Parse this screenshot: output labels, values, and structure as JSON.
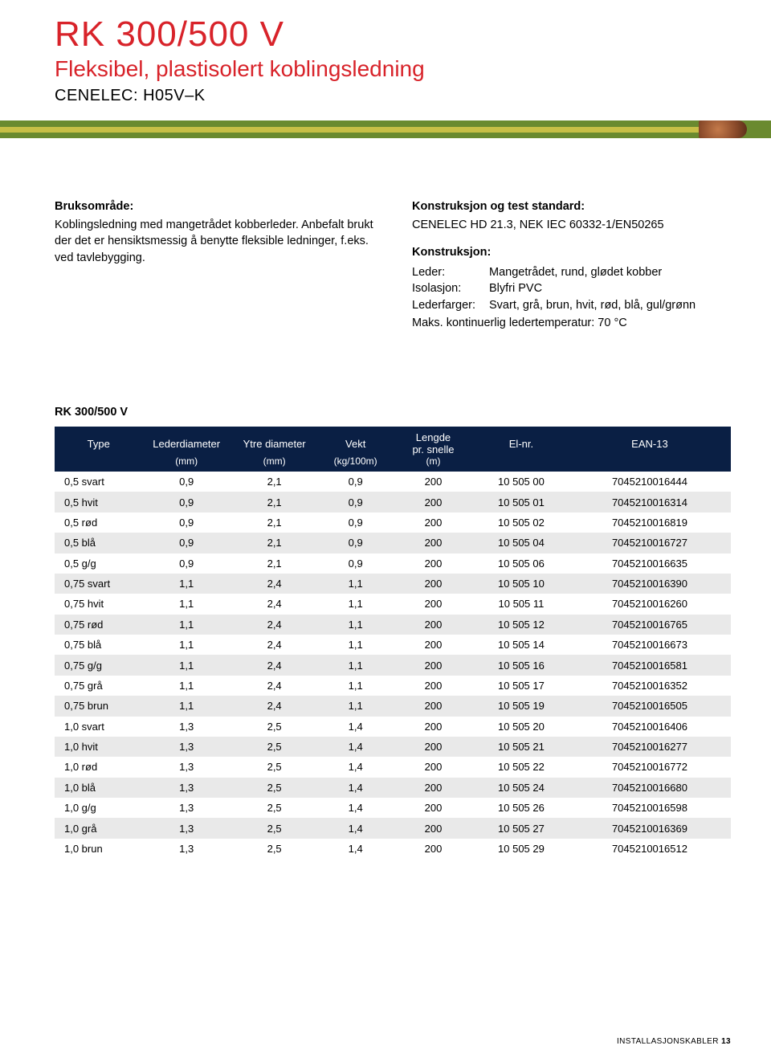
{
  "colors": {
    "brand_red": "#d8232a",
    "text": "#000000",
    "header_navy": "#0a1f44",
    "row_alt": "#e9e9e9",
    "white": "#ffffff"
  },
  "header": {
    "title": "RK 300/500 V",
    "subtitle": "Fleksibel, plastisolert koblingsledning",
    "cenelec": "CENELEC: H05V–K"
  },
  "left": {
    "head": "Bruksområde:",
    "body": "Koblingsledning med mangetrådet kobberleder. Anbefalt brukt der det er hensiktsmessig å benytte fleksible ledninger, f.eks. ved tavlebygging."
  },
  "right": {
    "head": "Konstruksjon og test standard:",
    "std": "CENELEC HD 21.3, NEK IEC 60332-1/EN50265",
    "k_head": "Konstruksjon:",
    "defs": [
      {
        "k": "Leder:",
        "v": "Mangetrådet, rund, glødet kobber"
      },
      {
        "k": "Isolasjon:",
        "v": "Blyfri PVC"
      },
      {
        "k": "Lederfarger:",
        "v": "Svart, grå, brun, hvit, rød, blå, gul/grønn"
      }
    ],
    "maks": "Maks. kontinuerlig ledertemperatur: 70 °C"
  },
  "table": {
    "title": "RK 300/500 V",
    "columns": [
      "Type",
      "Lederdiameter",
      "Ytre diameter",
      "Vekt",
      "Lengde pr. snelle",
      "El-nr.",
      "EAN-13"
    ],
    "units": [
      "",
      "(mm)",
      "(mm)",
      "(kg/100m)",
      "(m)",
      "",
      ""
    ],
    "col_widths_pct": [
      13,
      13,
      13,
      11,
      12,
      14,
      24
    ],
    "header_bg": "#0a1f44",
    "row_alt_bg": "#e9e9e9",
    "rows": [
      [
        "0,5 svart",
        "0,9",
        "2,1",
        "0,9",
        "200",
        "10 505 00",
        "7045210016444"
      ],
      [
        "0,5 hvit",
        "0,9",
        "2,1",
        "0,9",
        "200",
        "10 505 01",
        "7045210016314"
      ],
      [
        "0,5 rød",
        "0,9",
        "2,1",
        "0,9",
        "200",
        "10 505 02",
        "7045210016819"
      ],
      [
        "0,5 blå",
        "0,9",
        "2,1",
        "0,9",
        "200",
        "10 505 04",
        "7045210016727"
      ],
      [
        "0,5 g/g",
        "0,9",
        "2,1",
        "0,9",
        "200",
        "10 505 06",
        "7045210016635"
      ],
      [
        "0,75 svart",
        "1,1",
        "2,4",
        "1,1",
        "200",
        "10 505 10",
        "7045210016390"
      ],
      [
        "0,75 hvit",
        "1,1",
        "2,4",
        "1,1",
        "200",
        "10 505 11",
        "7045210016260"
      ],
      [
        "0,75 rød",
        "1,1",
        "2,4",
        "1,1",
        "200",
        "10 505 12",
        "7045210016765"
      ],
      [
        "0,75 blå",
        "1,1",
        "2,4",
        "1,1",
        "200",
        "10 505 14",
        "7045210016673"
      ],
      [
        "0,75 g/g",
        "1,1",
        "2,4",
        "1,1",
        "200",
        "10 505 16",
        "7045210016581"
      ],
      [
        "0,75 grå",
        "1,1",
        "2,4",
        "1,1",
        "200",
        "10 505 17",
        "7045210016352"
      ],
      [
        "0,75 brun",
        "1,1",
        "2,4",
        "1,1",
        "200",
        "10 505 19",
        "7045210016505"
      ],
      [
        "1,0 svart",
        "1,3",
        "2,5",
        "1,4",
        "200",
        "10 505 20",
        "7045210016406"
      ],
      [
        "1,0 hvit",
        "1,3",
        "2,5",
        "1,4",
        "200",
        "10 505 21",
        "7045210016277"
      ],
      [
        "1,0 rød",
        "1,3",
        "2,5",
        "1,4",
        "200",
        "10 505 22",
        "7045210016772"
      ],
      [
        "1,0 blå",
        "1,3",
        "2,5",
        "1,4",
        "200",
        "10 505 24",
        "7045210016680"
      ],
      [
        "1,0 g/g",
        "1,3",
        "2,5",
        "1,4",
        "200",
        "10 505 26",
        "7045210016598"
      ],
      [
        "1,0 grå",
        "1,3",
        "2,5",
        "1,4",
        "200",
        "10 505 27",
        "7045210016369"
      ],
      [
        "1,0 brun",
        "1,3",
        "2,5",
        "1,4",
        "200",
        "10 505 29",
        "7045210016512"
      ]
    ]
  },
  "footer": {
    "label": "INSTALLASJONSKABLER",
    "page": "13"
  }
}
